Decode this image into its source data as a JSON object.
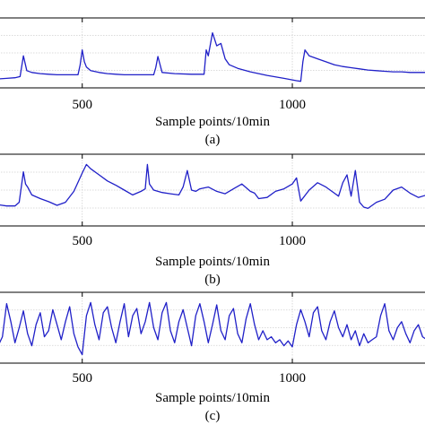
{
  "colors": {
    "line": "#2020c8",
    "grid": "#d0d0d0",
    "axis": "#000000"
  },
  "chart_data": [
    {
      "type": "line",
      "panel_label": "(a)",
      "xlabel": "Sample points/10min",
      "xlim": [
        300,
        1320
      ],
      "ylim": [
        0,
        1
      ],
      "xticks": [
        500,
        1000
      ],
      "grid": true,
      "series": [
        {
          "values_x": [
            300,
            320,
            340,
            352,
            360,
            368,
            380,
            400,
            420,
            440,
            460,
            480,
            490,
            495,
            500,
            505,
            510,
            520,
            540,
            560,
            580,
            600,
            620,
            640,
            660,
            670,
            675,
            680,
            690,
            720,
            760,
            790,
            795,
            800,
            810,
            820,
            830,
            840,
            850,
            870,
            900,
            940,
            980,
            1010,
            1020,
            1025,
            1030,
            1040,
            1060,
            1080,
            1100,
            1120,
            1140,
            1160,
            1180,
            1200,
            1220,
            1240,
            1260,
            1280,
            1300,
            1320
          ],
          "values_y": [
            0.06,
            0.07,
            0.08,
            0.1,
            0.45,
            0.2,
            0.17,
            0.15,
            0.14,
            0.13,
            0.13,
            0.13,
            0.13,
            0.3,
            0.55,
            0.35,
            0.26,
            0.2,
            0.17,
            0.15,
            0.14,
            0.13,
            0.13,
            0.13,
            0.13,
            0.13,
            0.25,
            0.44,
            0.17,
            0.15,
            0.14,
            0.14,
            0.55,
            0.45,
            0.84,
            0.62,
            0.66,
            0.4,
            0.3,
            0.24,
            0.18,
            0.12,
            0.07,
            0.03,
            0.02,
            0.35,
            0.55,
            0.45,
            0.4,
            0.35,
            0.3,
            0.27,
            0.25,
            0.23,
            0.21,
            0.2,
            0.19,
            0.18,
            0.18,
            0.17,
            0.17,
            0.17
          ]
        }
      ]
    },
    {
      "type": "line",
      "panel_label": "(b)",
      "xlabel": "Sample points/10min",
      "xlim": [
        300,
        1320
      ],
      "ylim": [
        0,
        1
      ],
      "xticks": [
        500,
        1000
      ],
      "grid": true,
      "series": [
        {
          "values_x": [
            300,
            320,
            340,
            350,
            360,
            365,
            370,
            380,
            400,
            420,
            440,
            460,
            480,
            500,
            510,
            520,
            540,
            560,
            580,
            600,
            620,
            640,
            650,
            655,
            660,
            670,
            690,
            710,
            730,
            740,
            750,
            760,
            770,
            780,
            800,
            820,
            840,
            860,
            880,
            900,
            910,
            920,
            940,
            960,
            980,
            1000,
            1010,
            1020,
            1040,
            1060,
            1080,
            1100,
            1110,
            1120,
            1130,
            1140,
            1150,
            1160,
            1170,
            1180,
            1200,
            1220,
            1240,
            1260,
            1280,
            1300,
            1320
          ],
          "values_y": [
            0.26,
            0.24,
            0.24,
            0.3,
            0.8,
            0.6,
            0.55,
            0.42,
            0.36,
            0.31,
            0.25,
            0.3,
            0.48,
            0.78,
            0.92,
            0.85,
            0.75,
            0.65,
            0.58,
            0.5,
            0.42,
            0.48,
            0.52,
            0.92,
            0.6,
            0.5,
            0.46,
            0.44,
            0.42,
            0.55,
            0.82,
            0.5,
            0.48,
            0.52,
            0.55,
            0.48,
            0.44,
            0.52,
            0.6,
            0.48,
            0.45,
            0.36,
            0.38,
            0.48,
            0.52,
            0.6,
            0.7,
            0.32,
            0.5,
            0.62,
            0.55,
            0.45,
            0.4,
            0.62,
            0.75,
            0.4,
            0.82,
            0.3,
            0.22,
            0.2,
            0.3,
            0.35,
            0.5,
            0.55,
            0.45,
            0.38,
            0.42
          ]
        }
      ]
    },
    {
      "type": "line",
      "panel_label": "(c)",
      "xlabel": "Sample points/10min",
      "xlim": [
        300,
        1320
      ],
      "ylim": [
        0,
        1
      ],
      "xticks": [
        500,
        1000
      ],
      "grid": true,
      "series": [
        {
          "values_x": [
            300,
            310,
            320,
            330,
            340,
            350,
            360,
            370,
            380,
            390,
            400,
            410,
            420,
            430,
            440,
            450,
            460,
            470,
            480,
            490,
            500,
            510,
            520,
            530,
            540,
            550,
            560,
            570,
            580,
            590,
            600,
            610,
            620,
            630,
            640,
            650,
            660,
            670,
            680,
            690,
            700,
            710,
            720,
            730,
            740,
            750,
            760,
            770,
            780,
            790,
            800,
            810,
            820,
            830,
            840,
            850,
            860,
            870,
            880,
            890,
            900,
            910,
            920,
            930,
            940,
            950,
            960,
            970,
            980,
            990,
            1000,
            1010,
            1020,
            1030,
            1040,
            1050,
            1060,
            1070,
            1080,
            1090,
            1100,
            1110,
            1120,
            1130,
            1140,
            1150,
            1160,
            1170,
            1180,
            1190,
            1200,
            1210,
            1220,
            1230,
            1240,
            1250,
            1260,
            1270,
            1280,
            1290,
            1300,
            1310,
            1320
          ],
          "values_y": [
            0.2,
            0.35,
            0.9,
            0.6,
            0.25,
            0.5,
            0.78,
            0.4,
            0.2,
            0.55,
            0.75,
            0.35,
            0.45,
            0.8,
            0.55,
            0.3,
            0.6,
            0.85,
            0.4,
            0.18,
            0.05,
            0.7,
            0.92,
            0.55,
            0.3,
            0.75,
            0.85,
            0.5,
            0.25,
            0.6,
            0.9,
            0.35,
            0.7,
            0.82,
            0.4,
            0.6,
            0.92,
            0.5,
            0.3,
            0.75,
            0.92,
            0.45,
            0.25,
            0.6,
            0.8,
            0.5,
            0.2,
            0.7,
            0.9,
            0.6,
            0.25,
            0.55,
            0.88,
            0.45,
            0.3,
            0.7,
            0.82,
            0.4,
            0.25,
            0.65,
            0.9,
            0.55,
            0.3,
            0.45,
            0.3,
            0.35,
            0.25,
            0.3,
            0.2,
            0.28,
            0.18,
            0.55,
            0.8,
            0.6,
            0.35,
            0.75,
            0.85,
            0.45,
            0.3,
            0.6,
            0.78,
            0.5,
            0.35,
            0.55,
            0.3,
            0.45,
            0.2,
            0.4,
            0.25,
            0.3,
            0.35,
            0.7,
            0.9,
            0.45,
            0.3,
            0.5,
            0.6,
            0.4,
            0.25,
            0.45,
            0.55,
            0.35,
            0.3
          ]
        }
      ]
    }
  ]
}
